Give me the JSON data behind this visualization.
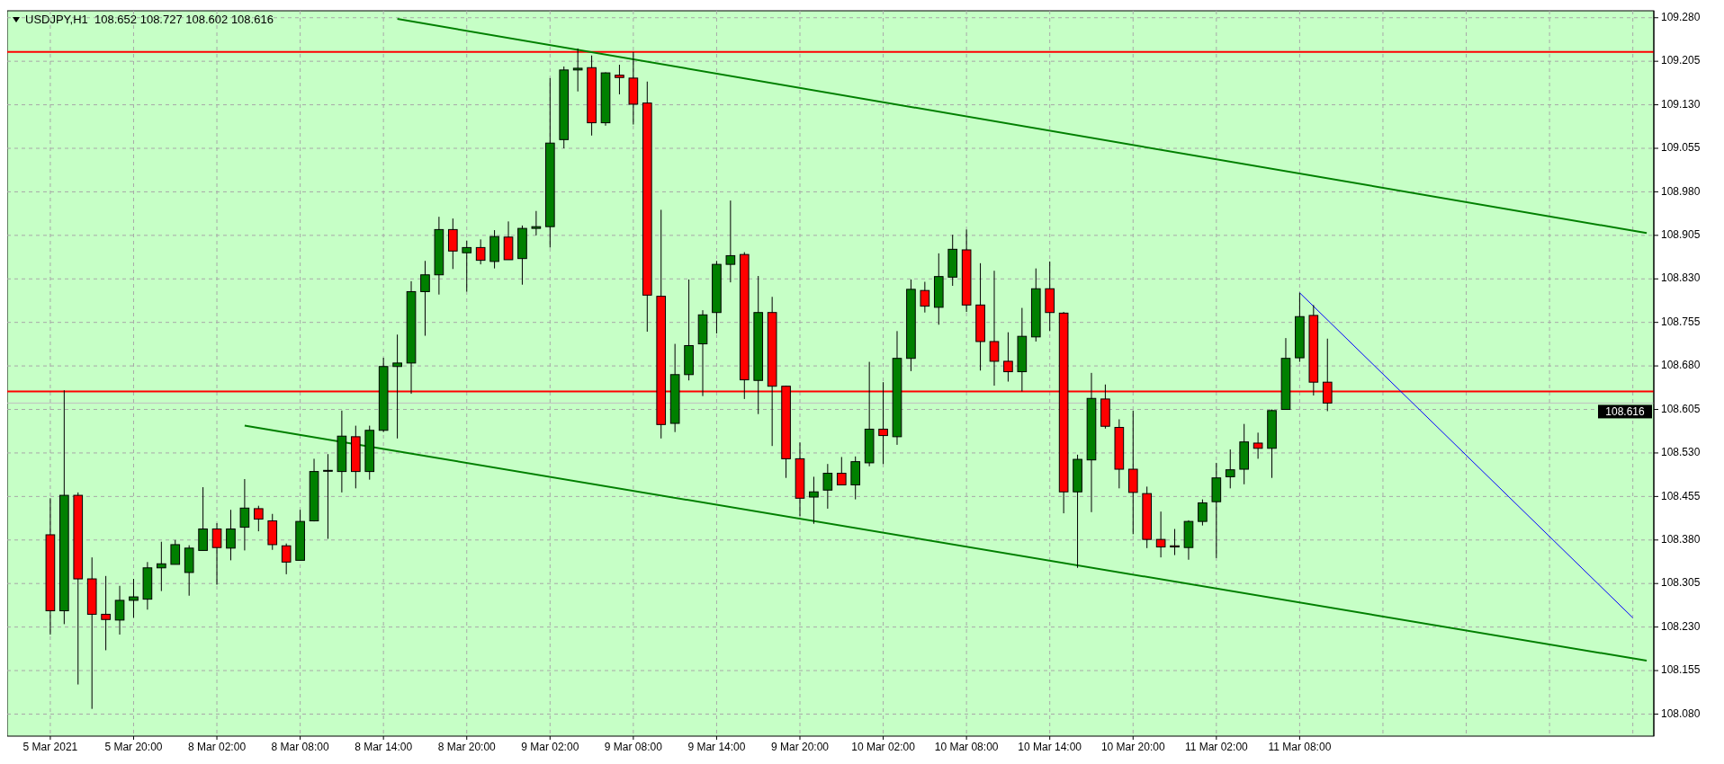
{
  "chart_data": {
    "type": "candlestick",
    "title": "USDJPY,H1  108.652 108.727 108.602 108.616",
    "categories": [
      "5 Mar 2021",
      null,
      null,
      null,
      null,
      null,
      "5 Mar 20:00",
      null,
      null,
      null,
      null,
      null,
      "8 Mar 02:00",
      null,
      null,
      null,
      null,
      null,
      "8 Mar 08:00",
      null,
      null,
      null,
      null,
      null,
      "8 Mar 14:00",
      null,
      null,
      null,
      null,
      null,
      "8 Mar 20:00",
      null,
      null,
      null,
      null,
      null,
      "9 Mar 02:00",
      null,
      null,
      null,
      null,
      null,
      "9 Mar 08:00",
      null,
      null,
      null,
      null,
      null,
      "9 Mar 14:00",
      null,
      null,
      null,
      null,
      null,
      "9 Mar 20:00",
      null,
      null,
      null,
      null,
      null,
      "10 Mar 02:00",
      null,
      null,
      null,
      null,
      null,
      "10 Mar 08:00",
      null,
      null,
      null,
      null,
      null,
      "10 Mar 14:00",
      null,
      null,
      null,
      null,
      null,
      "10 Mar 20:00",
      null,
      null,
      null,
      null,
      null,
      "11 Mar 02:00",
      null,
      null,
      null,
      null,
      null,
      "11 Mar 08:00",
      null,
      null,
      null,
      null,
      null,
      null,
      null,
      null,
      null,
      null,
      null,
      null,
      null,
      null,
      null,
      null,
      null,
      null,
      null,
      null,
      null,
      null,
      null,
      null,
      null
    ],
    "ohlc": [
      [
        108.389,
        108.452,
        108.217,
        108.258
      ],
      [
        108.258,
        108.638,
        108.235,
        108.457
      ],
      [
        108.457,
        108.462,
        108.131,
        108.313
      ],
      [
        108.313,
        108.35,
        108.089,
        108.252
      ],
      [
        108.252,
        108.318,
        108.19,
        108.243
      ],
      [
        108.242,
        108.301,
        108.217,
        108.276
      ],
      [
        108.276,
        108.313,
        108.246,
        108.282
      ],
      [
        108.278,
        108.342,
        108.26,
        108.332
      ],
      [
        108.332,
        108.377,
        108.292,
        108.339
      ],
      [
        108.338,
        108.38,
        108.338,
        108.372
      ],
      [
        108.324,
        108.371,
        108.284,
        108.366
      ],
      [
        108.362,
        108.471,
        108.362,
        108.399
      ],
      [
        108.399,
        108.409,
        108.303,
        108.367
      ],
      [
        108.366,
        108.432,
        108.345,
        108.399
      ],
      [
        108.402,
        108.485,
        108.362,
        108.435
      ],
      [
        108.434,
        108.439,
        108.395,
        108.416
      ],
      [
        108.413,
        108.425,
        108.363,
        108.372
      ],
      [
        108.37,
        108.374,
        108.321,
        108.342
      ],
      [
        108.345,
        108.432,
        108.345,
        108.412
      ],
      [
        108.413,
        108.52,
        108.412,
        108.498
      ],
      [
        108.499,
        108.528,
        108.382,
        108.5
      ],
      [
        108.498,
        108.603,
        108.462,
        108.559
      ],
      [
        108.558,
        108.577,
        108.469,
        108.498
      ],
      [
        108.498,
        108.577,
        108.484,
        108.569
      ],
      [
        108.569,
        108.694,
        108.566,
        108.679
      ],
      [
        108.679,
        108.734,
        108.555,
        108.685
      ],
      [
        108.685,
        108.826,
        108.632,
        108.808
      ],
      [
        108.808,
        108.861,
        108.732,
        108.837
      ],
      [
        108.837,
        108.937,
        108.803,
        108.915
      ],
      [
        108.915,
        108.934,
        108.847,
        108.878
      ],
      [
        108.875,
        108.896,
        108.808,
        108.884
      ],
      [
        108.884,
        108.898,
        108.855,
        108.862
      ],
      [
        108.86,
        108.914,
        108.848,
        108.903
      ],
      [
        108.902,
        108.929,
        108.863,
        108.863
      ],
      [
        108.865,
        108.922,
        108.82,
        108.917
      ],
      [
        108.917,
        108.947,
        108.905,
        108.92
      ],
      [
        108.92,
        109.176,
        108.884,
        109.064
      ],
      [
        109.07,
        109.196,
        109.055,
        109.19
      ],
      [
        109.19,
        109.227,
        109.153,
        109.193
      ],
      [
        109.194,
        109.215,
        109.077,
        109.099
      ],
      [
        109.099,
        109.186,
        109.094,
        109.185
      ],
      [
        109.181,
        109.199,
        109.148,
        109.177
      ],
      [
        109.176,
        109.221,
        109.096,
        109.131
      ],
      [
        109.133,
        109.17,
        108.739,
        108.802
      ],
      [
        108.8,
        108.949,
        108.555,
        108.579
      ],
      [
        108.581,
        108.718,
        108.566,
        108.665
      ],
      [
        108.665,
        108.829,
        108.655,
        108.715
      ],
      [
        108.718,
        108.776,
        108.628,
        108.768
      ],
      [
        108.772,
        108.861,
        108.736,
        108.855
      ],
      [
        108.855,
        108.965,
        108.824,
        108.87
      ],
      [
        108.872,
        108.876,
        108.623,
        108.656
      ],
      [
        108.655,
        108.835,
        108.597,
        108.772
      ],
      [
        108.772,
        108.799,
        108.542,
        108.645
      ],
      [
        108.645,
        108.646,
        108.487,
        108.52
      ],
      [
        108.52,
        108.548,
        108.421,
        108.452
      ],
      [
        108.454,
        108.489,
        108.408,
        108.463
      ],
      [
        108.466,
        108.511,
        108.434,
        108.495
      ],
      [
        108.495,
        108.523,
        108.475,
        108.475
      ],
      [
        108.475,
        108.524,
        108.45,
        108.515
      ],
      [
        108.513,
        108.687,
        108.507,
        108.571
      ],
      [
        108.571,
        108.652,
        108.511,
        108.56
      ],
      [
        108.558,
        108.74,
        108.544,
        108.693
      ],
      [
        108.693,
        108.829,
        108.671,
        108.812
      ],
      [
        108.81,
        108.825,
        108.772,
        108.783
      ],
      [
        108.781,
        108.874,
        108.751,
        108.834
      ],
      [
        108.833,
        108.906,
        108.818,
        108.881
      ],
      [
        108.88,
        108.915,
        108.773,
        108.785
      ],
      [
        108.785,
        108.857,
        108.672,
        108.722
      ],
      [
        108.722,
        108.844,
        108.646,
        108.688
      ],
      [
        108.688,
        108.738,
        108.653,
        108.67
      ],
      [
        108.67,
        108.78,
        108.636,
        108.731
      ],
      [
        108.73,
        108.848,
        108.722,
        108.813
      ],
      [
        108.813,
        108.86,
        108.74,
        108.772
      ],
      [
        108.771,
        108.773,
        108.426,
        108.463
      ],
      [
        108.463,
        108.527,
        108.332,
        108.519
      ],
      [
        108.518,
        108.668,
        108.428,
        108.624
      ],
      [
        108.623,
        108.648,
        108.572,
        108.576
      ],
      [
        108.574,
        108.588,
        108.469,
        108.502
      ],
      [
        108.502,
        108.603,
        108.39,
        108.462
      ],
      [
        108.46,
        108.472,
        108.366,
        108.381
      ],
      [
        108.381,
        108.429,
        108.35,
        108.368
      ],
      [
        108.37,
        108.399,
        108.354,
        108.368
      ],
      [
        108.367,
        108.414,
        108.346,
        108.412
      ],
      [
        108.412,
        108.45,
        108.405,
        108.444
      ],
      [
        108.446,
        108.513,
        108.349,
        108.487
      ],
      [
        108.489,
        108.536,
        108.469,
        108.501
      ],
      [
        108.502,
        108.58,
        108.476,
        108.549
      ],
      [
        108.547,
        108.565,
        108.52,
        108.538
      ],
      [
        108.538,
        108.605,
        108.487,
        108.603
      ],
      [
        108.605,
        108.728,
        108.605,
        108.693
      ],
      [
        108.694,
        108.806,
        108.687,
        108.765
      ],
      [
        108.767,
        108.785,
        108.629,
        108.652
      ],
      [
        108.652,
        108.727,
        108.602,
        108.616
      ],
      null,
      null,
      null,
      null,
      null,
      null,
      null,
      null,
      null,
      null,
      null,
      null,
      null,
      null,
      null,
      null,
      null,
      null,
      null,
      null,
      null,
      null,
      null
    ],
    "colors": [
      "#ff0000",
      "#008000",
      "#ff0000",
      "#ff0000",
      "#ff0000",
      "#008000",
      "#008000",
      "#008000",
      "#008000",
      "#008000",
      "#008000",
      "#008000",
      "#ff0000",
      "#008000",
      "#008000",
      "#ff0000",
      "#ff0000",
      "#ff0000",
      "#008000",
      "#008000",
      "#008000",
      "#008000",
      "#ff0000",
      "#008000",
      "#008000",
      "#008000",
      "#008000",
      "#008000",
      "#008000",
      "#ff0000",
      "#008000",
      "#ff0000",
      "#008000",
      "#ff0000",
      "#008000",
      "#008000",
      "#008000",
      "#008000",
      "#008000",
      "#ff0000",
      "#008000",
      "#ff0000",
      "#ff0000",
      "#ff0000",
      "#ff0000",
      "#008000",
      "#008000",
      "#008000",
      "#008000",
      "#008000",
      "#ff0000",
      "#008000",
      "#ff0000",
      "#ff0000",
      "#ff0000",
      "#008000",
      "#008000",
      "#ff0000",
      "#008000",
      "#008000",
      "#ff0000",
      "#008000",
      "#008000",
      "#ff0000",
      "#008000",
      "#008000",
      "#ff0000",
      "#ff0000",
      "#ff0000",
      "#ff0000",
      "#008000",
      "#008000",
      "#ff0000",
      "#ff0000",
      "#008000",
      "#008000",
      "#ff0000",
      "#ff0000",
      "#ff0000",
      "#ff0000",
      "#ff0000",
      "#ff0000",
      "#008000",
      "#008000",
      "#008000",
      "#008000",
      "#008000",
      "#ff0000",
      "#008000",
      "#008000",
      "#008000",
      "#ff0000",
      "#ff0000",
      null,
      null,
      null,
      null,
      null,
      null,
      null,
      null,
      null,
      null,
      null,
      null,
      null,
      null,
      null,
      null,
      null,
      null,
      null,
      null,
      null,
      null,
      null
    ],
    "series": [
      {
        "type": "line",
        "color": "#008000",
        "values": [
          null,
          null,
          null,
          null,
          null,
          null,
          null,
          null,
          null,
          null,
          null,
          null,
          null,
          null,
          108.577,
          null,
          null,
          null,
          null,
          null,
          null,
          null,
          null,
          null,
          null,
          null,
          null,
          null,
          null,
          null,
          null,
          null,
          null,
          null,
          null,
          null,
          null,
          null,
          null,
          null,
          null,
          null,
          null,
          null,
          null,
          null,
          null,
          null,
          null,
          null,
          null,
          null,
          null,
          null,
          null,
          null,
          null,
          null,
          null,
          null,
          null,
          null,
          null,
          null,
          null,
          null,
          null,
          null,
          null,
          null,
          null,
          null,
          null,
          null,
          null,
          null,
          null,
          null,
          null,
          null,
          null,
          null,
          null,
          null,
          null,
          null,
          null,
          null,
          null,
          null,
          null,
          null,
          null,
          null,
          null,
          null,
          null,
          null,
          null,
          null,
          null,
          null,
          null,
          null,
          null,
          null,
          null,
          null,
          null,
          null,
          null,
          null,
          null,
          null,
          null,
          108.172
        ]
      },
      {
        "type": "line",
        "color": "#008000",
        "values": [
          null,
          null,
          null,
          null,
          null,
          null,
          null,
          null,
          null,
          null,
          null,
          null,
          null,
          null,
          null,
          null,
          null,
          null,
          null,
          null,
          null,
          null,
          null,
          null,
          null,
          109.278,
          null,
          null,
          null,
          null,
          null,
          null,
          null,
          null,
          null,
          null,
          null,
          null,
          null,
          null,
          null,
          null,
          null,
          null,
          null,
          null,
          null,
          null,
          null,
          null,
          null,
          null,
          null,
          null,
          null,
          null,
          null,
          null,
          null,
          null,
          null,
          null,
          null,
          null,
          null,
          null,
          null,
          null,
          null,
          null,
          null,
          null,
          null,
          null,
          null,
          null,
          null,
          null,
          null,
          null,
          null,
          null,
          null,
          null,
          null,
          null,
          null,
          null,
          null,
          null,
          null,
          null,
          null,
          null,
          null,
          null,
          null,
          null,
          null,
          null,
          null,
          null,
          null,
          null,
          null,
          null,
          null,
          null,
          null,
          null,
          null,
          null,
          null,
          null,
          null,
          108.909
        ]
      },
      {
        "type": "line",
        "color": "#0000ff",
        "values": [
          null,
          null,
          null,
          null,
          null,
          null,
          null,
          null,
          null,
          null,
          null,
          null,
          null,
          null,
          null,
          null,
          null,
          null,
          null,
          null,
          null,
          null,
          null,
          null,
          null,
          null,
          null,
          null,
          null,
          null,
          null,
          null,
          null,
          null,
          null,
          null,
          null,
          null,
          null,
          null,
          null,
          null,
          null,
          null,
          null,
          null,
          null,
          null,
          null,
          null,
          null,
          null,
          null,
          null,
          null,
          null,
          null,
          null,
          null,
          null,
          null,
          null,
          null,
          null,
          null,
          null,
          null,
          null,
          null,
          null,
          null,
          null,
          null,
          null,
          null,
          null,
          null,
          null,
          null,
          null,
          null,
          null,
          null,
          null,
          null,
          null,
          null,
          null,
          null,
          null,
          108.806,
          null,
          null,
          null,
          null,
          null,
          null,
          null,
          null,
          null,
          null,
          null,
          null,
          null,
          null,
          null,
          null,
          null,
          null,
          null,
          null,
          null,
          null,
          null,
          108.246,
          null
        ]
      }
    ],
    "ref_lines": [
      {
        "axis": "y",
        "value": 109.221,
        "color": "#ff0000"
      },
      {
        "axis": "y",
        "value": 108.636,
        "color": "#ff0000"
      },
      {
        "axis": "y",
        "value": 108.616,
        "label": "108.616",
        "color": "#c0c0c0"
      }
    ],
    "ylim": [
      108.042,
      109.292
    ],
    "yticks": [
      {
        "value": 109.28,
        "label": "109.280"
      },
      {
        "value": 109.205,
        "label": "109.205"
      },
      {
        "value": 109.13,
        "label": "109.130"
      },
      {
        "value": 109.055,
        "label": "109.055"
      },
      {
        "value": 108.98,
        "label": "108.980"
      },
      {
        "value": 108.905,
        "label": "108.905"
      },
      {
        "value": 108.83,
        "label": "108.830"
      },
      {
        "value": 108.755,
        "label": "108.755"
      },
      {
        "value": 108.68,
        "label": "108.680"
      },
      {
        "value": 108.605,
        "label": "108.605"
      },
      {
        "value": 108.53,
        "label": "108.530"
      },
      {
        "value": 108.455,
        "label": "108.455"
      },
      {
        "value": 108.38,
        "label": "108.380"
      },
      {
        "value": 108.305,
        "label": "108.305"
      },
      {
        "value": 108.23,
        "label": "108.230"
      },
      {
        "value": 108.155,
        "label": "108.155"
      },
      {
        "value": 108.08,
        "label": "108.080"
      }
    ],
    "grid": true
  }
}
